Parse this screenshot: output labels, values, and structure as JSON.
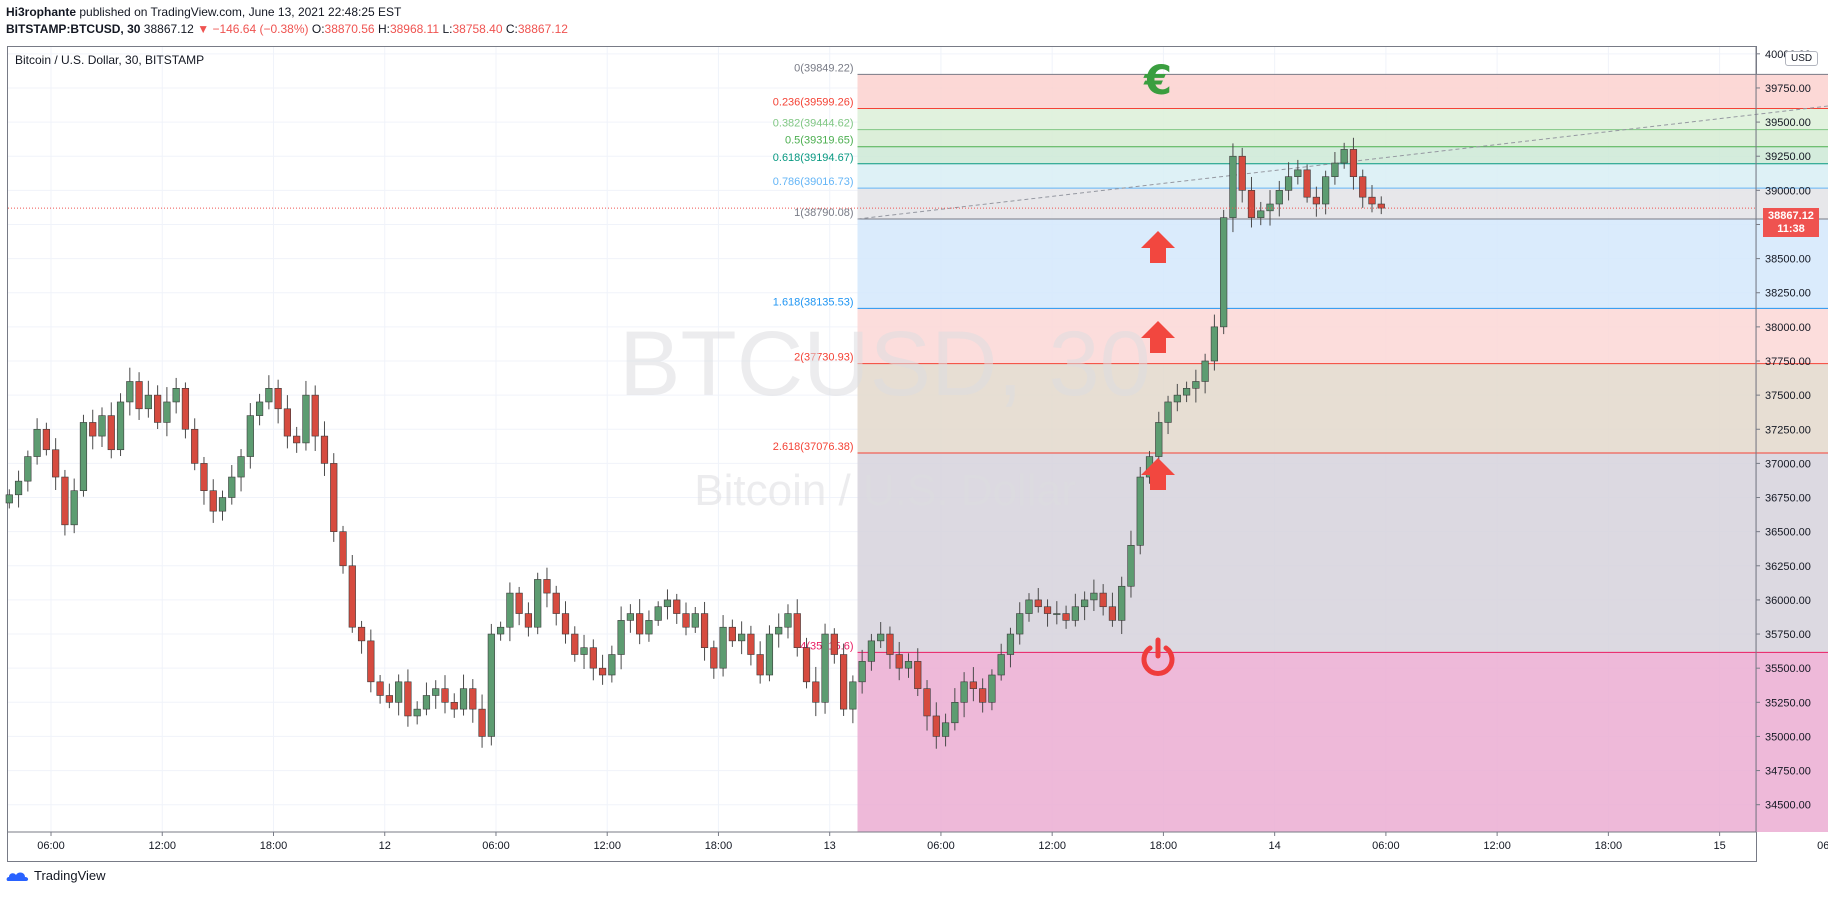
{
  "header": {
    "author": "Hi3rophante",
    "published_text": "published on TradingView.com, June 13, 2021 22:48:25 EST",
    "symbol": "BITSTAMP:BTCUSD, 30",
    "last": "38867.12",
    "change_arrow": "▼",
    "change": "−146.64 (−0.38%)",
    "ohlc": {
      "o_label": "O:",
      "o": "38870.56",
      "h_label": "H:",
      "h": "38968.11",
      "l_label": "L:",
      "l": "38758.40",
      "c_label": "C:",
      "c": "38867.12"
    }
  },
  "legend_title": "Bitcoin / U.S. Dollar, 30, BITSTAMP",
  "currency_badge": "USD",
  "last_price_label": {
    "price": "38867.12",
    "countdown": "11:38"
  },
  "watermark": {
    "symbol": "BTCUSD, 30",
    "name": "Bitcoin / U.S. Dollar"
  },
  "footer": {
    "brand": "TradingView"
  },
  "colors": {
    "up": "#26a69a",
    "down": "#ef5350",
    "up_body": "#5d9c71",
    "down_body": "#d64b3f",
    "arrow": "#f2473f",
    "euro": "#3a9e3f",
    "power": "#ef3c3c"
  },
  "chart_data": {
    "type": "candlestick",
    "ylim": [
      34300,
      40050
    ],
    "y_ticks": [
      "34500.00",
      "34750.00",
      "35000.00",
      "35250.00",
      "35500.00",
      "35750.00",
      "36000.00",
      "36250.00",
      "36500.00",
      "36750.00",
      "37000.00",
      "37250.00",
      "37500.00",
      "37750.00",
      "38000.00",
      "38250.00",
      "38500.00",
      "38750.00",
      "39000.00",
      "39250.00",
      "39500.00",
      "39750.00",
      "40000.00"
    ],
    "y_tick_values": [
      34500,
      34750,
      35000,
      35250,
      35500,
      35750,
      36000,
      36250,
      36500,
      36750,
      37000,
      37250,
      37500,
      37750,
      38000,
      38250,
      38500,
      38750,
      39000,
      39250,
      39500,
      39750,
      40000
    ],
    "x_ticks": [
      {
        "label": "06:00",
        "bar": 4.5
      },
      {
        "label": "12:00",
        "bar": 16.5
      },
      {
        "label": "18:00",
        "bar": 28.5
      },
      {
        "label": "12",
        "bar": 40.5
      },
      {
        "label": "06:00",
        "bar": 52.5
      },
      {
        "label": "12:00",
        "bar": 64.5
      },
      {
        "label": "18:00",
        "bar": 76.5
      },
      {
        "label": "13",
        "bar": 88.5
      },
      {
        "label": "06:00",
        "bar": 100.5
      },
      {
        "label": "12:00",
        "bar": 112.5
      },
      {
        "label": "18:00",
        "bar": 124.5
      },
      {
        "label": "14",
        "bar": 136.5
      },
      {
        "label": "06:00",
        "bar": 148.5
      },
      {
        "label": "12:00",
        "bar": 160.5
      },
      {
        "label": "18:00",
        "bar": 172.5
      },
      {
        "label": "15",
        "bar": 184.5
      },
      {
        "label": "06:00",
        "bar": 196.5
      },
      {
        "label": "12:00",
        "bar": 208.5
      },
      {
        "label": "18:00",
        "bar": 220.5
      }
    ],
    "closes": [
      36770,
      36870,
      37050,
      37250,
      37100,
      36900,
      36550,
      36800,
      37300,
      37200,
      37350,
      37100,
      37450,
      37600,
      37400,
      37500,
      37300,
      37450,
      37550,
      37250,
      37000,
      36800,
      36650,
      36750,
      36900,
      37050,
      37350,
      37450,
      37550,
      37400,
      37200,
      37150,
      37500,
      37200,
      37000,
      36500,
      36250,
      35800,
      35700,
      35400,
      35300,
      35250,
      35400,
      35150,
      35200,
      35300,
      35350,
      35250,
      35200,
      35350,
      35200,
      35000,
      35750,
      35800,
      36050,
      35900,
      35800,
      36150,
      36050,
      35900,
      35750,
      35600,
      35650,
      35500,
      35450,
      35600,
      35850,
      35900,
      35750,
      35850,
      35950,
      36000,
      35900,
      35800,
      35900,
      35650,
      35500,
      35800,
      35700,
      35750,
      35600,
      35450,
      35750,
      35800,
      35900,
      35650,
      35400,
      35250,
      35750,
      35600,
      35200,
      35400,
      35550,
      35700,
      35750,
      35600,
      35500,
      35550,
      35350,
      35150,
      35000,
      35100,
      35250,
      35400,
      35350,
      35250,
      35450,
      35600,
      35750,
      35900,
      36000,
      35950,
      35900,
      35900,
      35850,
      35950,
      36000,
      36050,
      35950,
      35850,
      36100,
      36400,
      36900,
      37050,
      37300,
      37450,
      37500,
      37550,
      37600,
      37750,
      38000,
      38800,
      39250,
      39000,
      38800,
      38850,
      38900,
      39000,
      39100,
      39150,
      38950,
      38900,
      39100,
      39200,
      39300,
      39100,
      38950,
      38900,
      38870
    ]
  },
  "fib": {
    "levels": [
      {
        "label": "0(39849.22)",
        "price": 39849.22,
        "color": "#787b86",
        "fill": "#fbd1cf"
      },
      {
        "label": "0.236(39599.26)",
        "price": 39599.26,
        "color": "#f44336",
        "fill": "#dcf0d8"
      },
      {
        "label": "0.382(39444.62)",
        "price": 39444.62,
        "color": "#81c784",
        "fill": "#d6ecd2"
      },
      {
        "label": "0.5(39319.65)",
        "price": 39319.65,
        "color": "#4caf50",
        "fill": "#cde9d6"
      },
      {
        "label": "0.618(39194.67)",
        "price": 39194.67,
        "color": "#089981",
        "fill": "#d8eef4"
      },
      {
        "label": "0.786(39016.73)",
        "price": 39016.73,
        "color": "#64b5f6",
        "fill": "#e3e3e6"
      },
      {
        "label": "1(38790.08)",
        "price": 38790.08,
        "color": "#787b86",
        "fill": "#d3e7fb"
      },
      {
        "label": "1.618(38135.53)",
        "price": 38135.53,
        "color": "#2196f3",
        "fill": "#fbd7d6"
      },
      {
        "label": "2(37730.93)",
        "price": 37730.93,
        "color": "#f44336",
        "fill": "#e3d8cb"
      },
      {
        "label": "2.618(37076.38)",
        "price": 37076.38,
        "color": "#f44336",
        "fill": "#d6d2dc"
      },
      {
        "label": "4(35615.6)",
        "price": 35615.6,
        "color": "#e91e63",
        "fill": "#ebadd2"
      }
    ],
    "start_bar": 91.5,
    "end_bar": 225.5
  }
}
